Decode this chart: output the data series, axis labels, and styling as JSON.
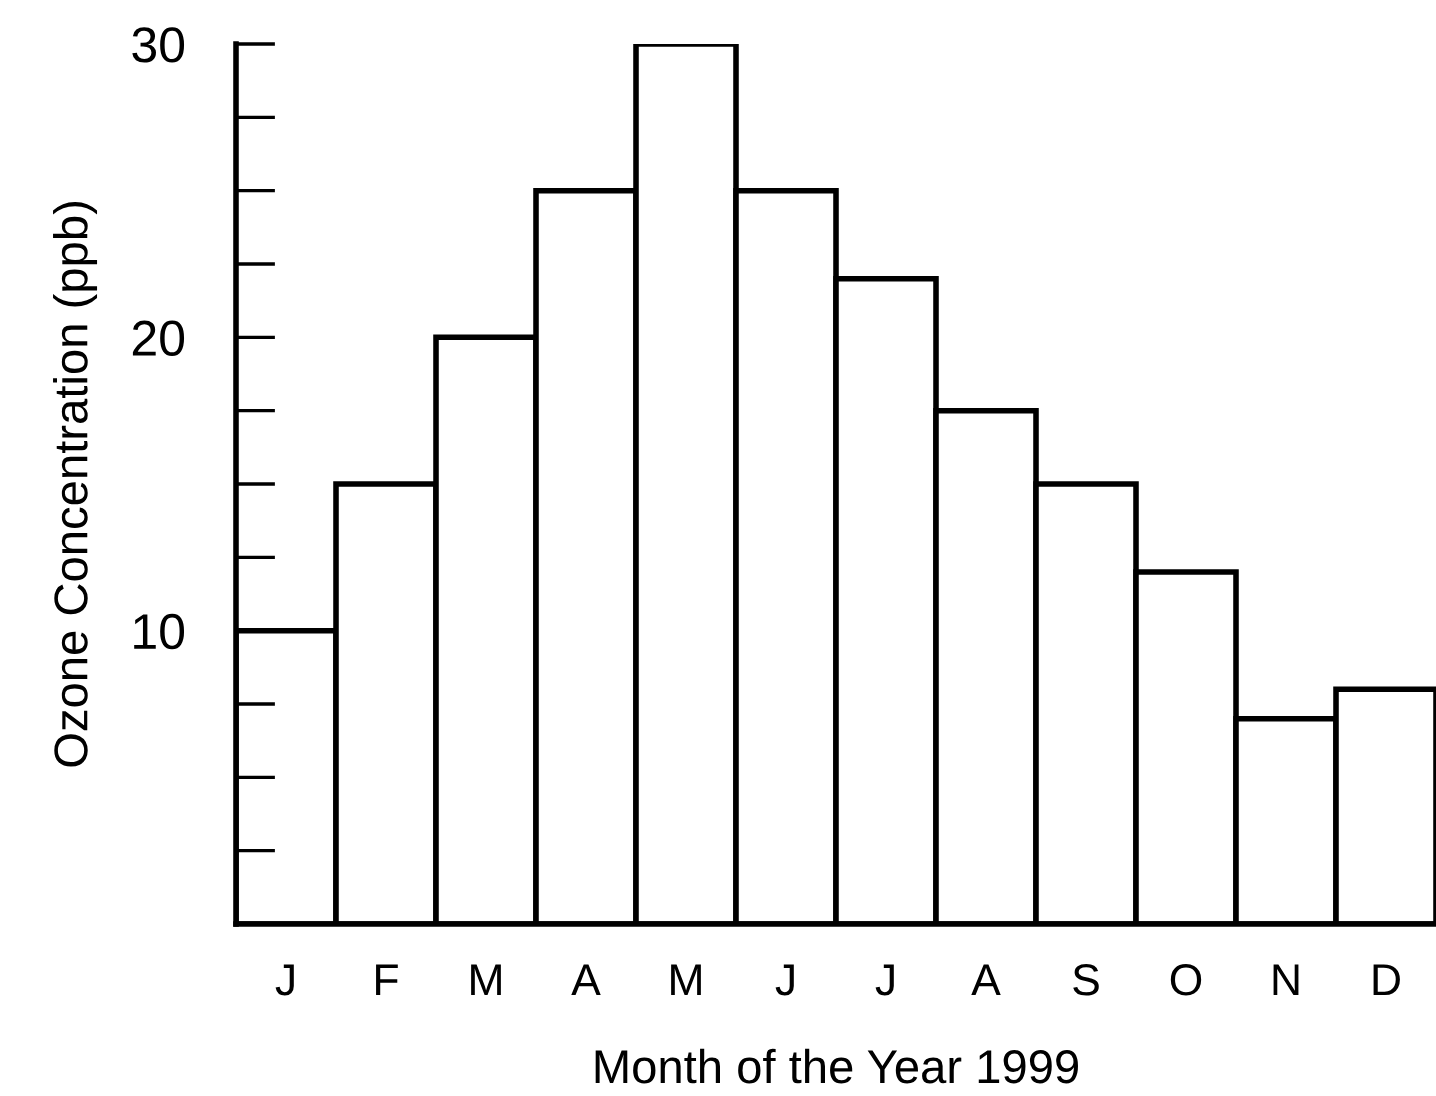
{
  "chart_data": {
    "type": "bar",
    "xlabel": "Month of the Year 1999",
    "ylabel": "Ozone Concentration (ppb)",
    "categories": [
      "J",
      "F",
      "M",
      "A",
      "M",
      "J",
      "J",
      "A",
      "S",
      "O",
      "N",
      "D"
    ],
    "values": [
      10,
      15,
      20,
      25,
      30,
      25,
      22,
      17.5,
      15,
      12,
      7,
      8
    ],
    "color": "#ffffff",
    "ylim": [
      0,
      30
    ],
    "yticks": [
      10,
      20,
      30
    ],
    "grid": false
  }
}
